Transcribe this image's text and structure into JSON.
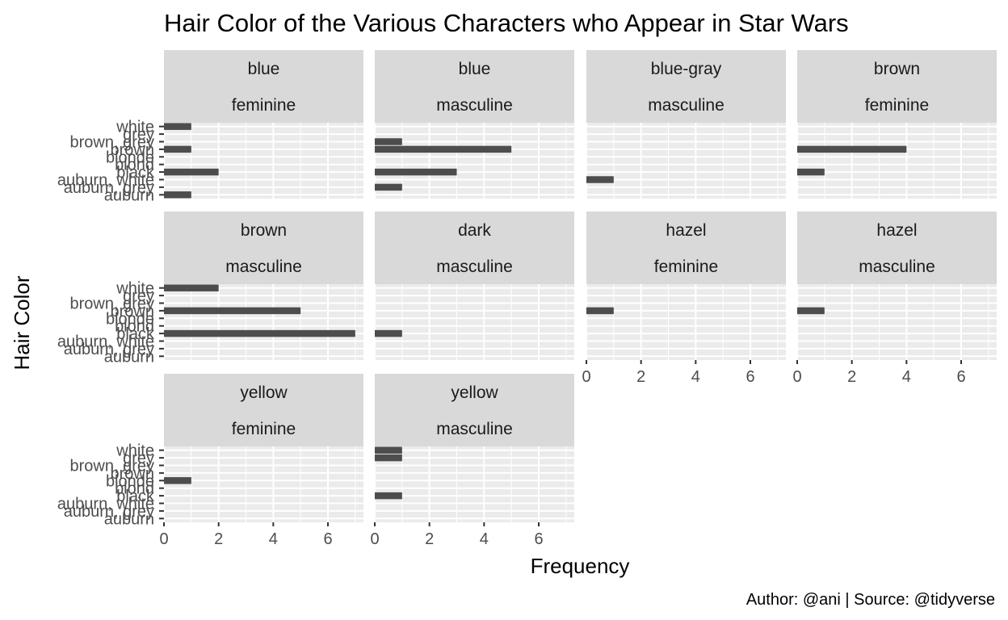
{
  "chart_data": {
    "type": "bar",
    "orientation": "horizontal",
    "title": "Hair Color of the Various Characters who Appear in Star Wars",
    "xlabel": "Frequency",
    "ylabel": "Hair Color",
    "caption": "Author: @ani | Source: @tidyverse",
    "xlim": [
      0,
      7.3
    ],
    "xticks": [
      0,
      2,
      4,
      6
    ],
    "categories": [
      "auburn",
      "auburn, grey",
      "auburn, white",
      "black",
      "blond",
      "blonde",
      "brown",
      "brown, grey",
      "grey",
      "white"
    ],
    "grid": true,
    "facet_columns": 4,
    "facets": [
      {
        "strip": [
          "blue",
          "feminine"
        ],
        "values": [
          1,
          0,
          0,
          2,
          0,
          0,
          1,
          0,
          0,
          1
        ]
      },
      {
        "strip": [
          "blue",
          "masculine"
        ],
        "values": [
          0,
          1,
          0,
          3,
          0,
          0,
          5,
          1,
          0,
          0
        ]
      },
      {
        "strip": [
          "blue-gray",
          "masculine"
        ],
        "values": [
          0,
          0,
          1,
          0,
          0,
          0,
          0,
          0,
          0,
          0
        ]
      },
      {
        "strip": [
          "brown",
          "feminine"
        ],
        "values": [
          0,
          0,
          0,
          1,
          0,
          0,
          4,
          0,
          0,
          0
        ]
      },
      {
        "strip": [
          "brown",
          "masculine"
        ],
        "values": [
          0,
          0,
          0,
          7,
          0,
          0,
          5,
          0,
          0,
          2
        ]
      },
      {
        "strip": [
          "dark",
          "masculine"
        ],
        "values": [
          0,
          0,
          0,
          1,
          0,
          0,
          0,
          0,
          0,
          0
        ]
      },
      {
        "strip": [
          "hazel",
          "feminine"
        ],
        "values": [
          0,
          0,
          0,
          0,
          0,
          0,
          1,
          0,
          0,
          0
        ]
      },
      {
        "strip": [
          "hazel",
          "masculine"
        ],
        "values": [
          0,
          0,
          0,
          0,
          0,
          0,
          1,
          0,
          0,
          0
        ]
      },
      {
        "strip": [
          "yellow",
          "feminine"
        ],
        "values": [
          0,
          0,
          0,
          0,
          0,
          1,
          0,
          0,
          0,
          0
        ]
      },
      {
        "strip": [
          "yellow",
          "masculine"
        ],
        "values": [
          0,
          0,
          0,
          1,
          0,
          0,
          0,
          0,
          1,
          1
        ]
      }
    ],
    "colors": {
      "bar": "#4d4d4d",
      "panel_background": "#ebebeb",
      "strip_background": "#d9d9d9",
      "grid": "#ffffff"
    }
  }
}
